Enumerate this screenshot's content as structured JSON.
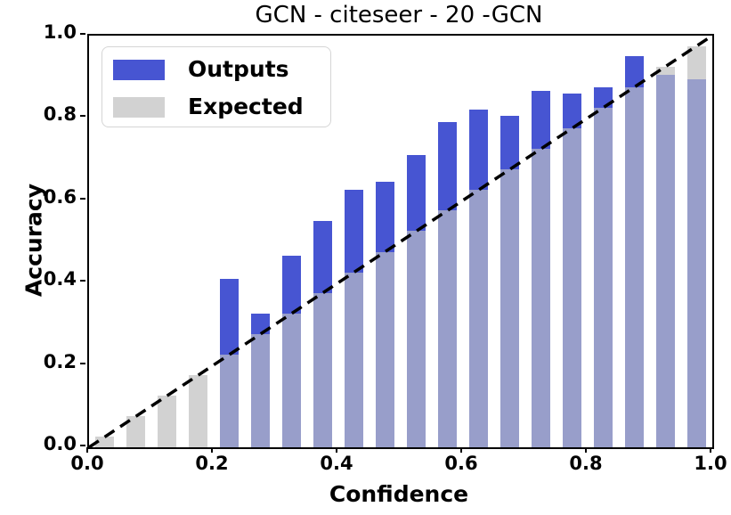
{
  "title": "GCN - citeseer - 20 -GCN",
  "axes": {
    "xlabel": "Confidence",
    "ylabel": "Accuracy",
    "x_tick_labels": [
      "0.0",
      "0.2",
      "0.4",
      "0.6",
      "0.8",
      "1.0"
    ],
    "y_tick_labels": [
      "0.0",
      "0.2",
      "0.4",
      "0.6",
      "0.8",
      "1.0"
    ]
  },
  "legend": {
    "items": [
      {
        "label": "Outputs",
        "color": "#4755d2"
      },
      {
        "label": "Expected",
        "color": "#d2d2d2"
      }
    ]
  },
  "colors": {
    "outputs_blue": "#4755d2",
    "expected_gray": "#d2d2d2",
    "overlap_periwinkle": "#989eca",
    "diagonal_line": "#000000"
  },
  "chart_data": {
    "type": "bar",
    "title": "GCN - citeseer - 20 -GCN",
    "xlabel": "Confidence",
    "ylabel": "Accuracy",
    "xlim": [
      0,
      1
    ],
    "ylim": [
      0,
      1
    ],
    "grid": false,
    "legend_position": "upper left",
    "bin_width": 0.05,
    "bar_width": 0.03,
    "bin_centers": [
      0.025,
      0.075,
      0.125,
      0.175,
      0.225,
      0.275,
      0.325,
      0.375,
      0.425,
      0.475,
      0.525,
      0.575,
      0.625,
      0.675,
      0.725,
      0.775,
      0.825,
      0.875,
      0.925,
      0.975
    ],
    "series": [
      {
        "name": "Outputs",
        "values": [
          0,
          0,
          0,
          0,
          0.41,
          0.325,
          0.465,
          0.55,
          0.625,
          0.645,
          0.71,
          0.79,
          0.82,
          0.805,
          0.865,
          0.86,
          0.875,
          0.95,
          0.905,
          0.895
        ]
      },
      {
        "name": "Expected",
        "values": [
          0.025,
          0.075,
          0.125,
          0.175,
          0.225,
          0.275,
          0.325,
          0.375,
          0.425,
          0.475,
          0.525,
          0.575,
          0.625,
          0.675,
          0.725,
          0.775,
          0.825,
          0.875,
          0.925,
          0.975
        ]
      }
    ],
    "diagonal_reference": {
      "from": [
        0,
        0
      ],
      "to": [
        1,
        1
      ],
      "style": "dashed"
    }
  }
}
